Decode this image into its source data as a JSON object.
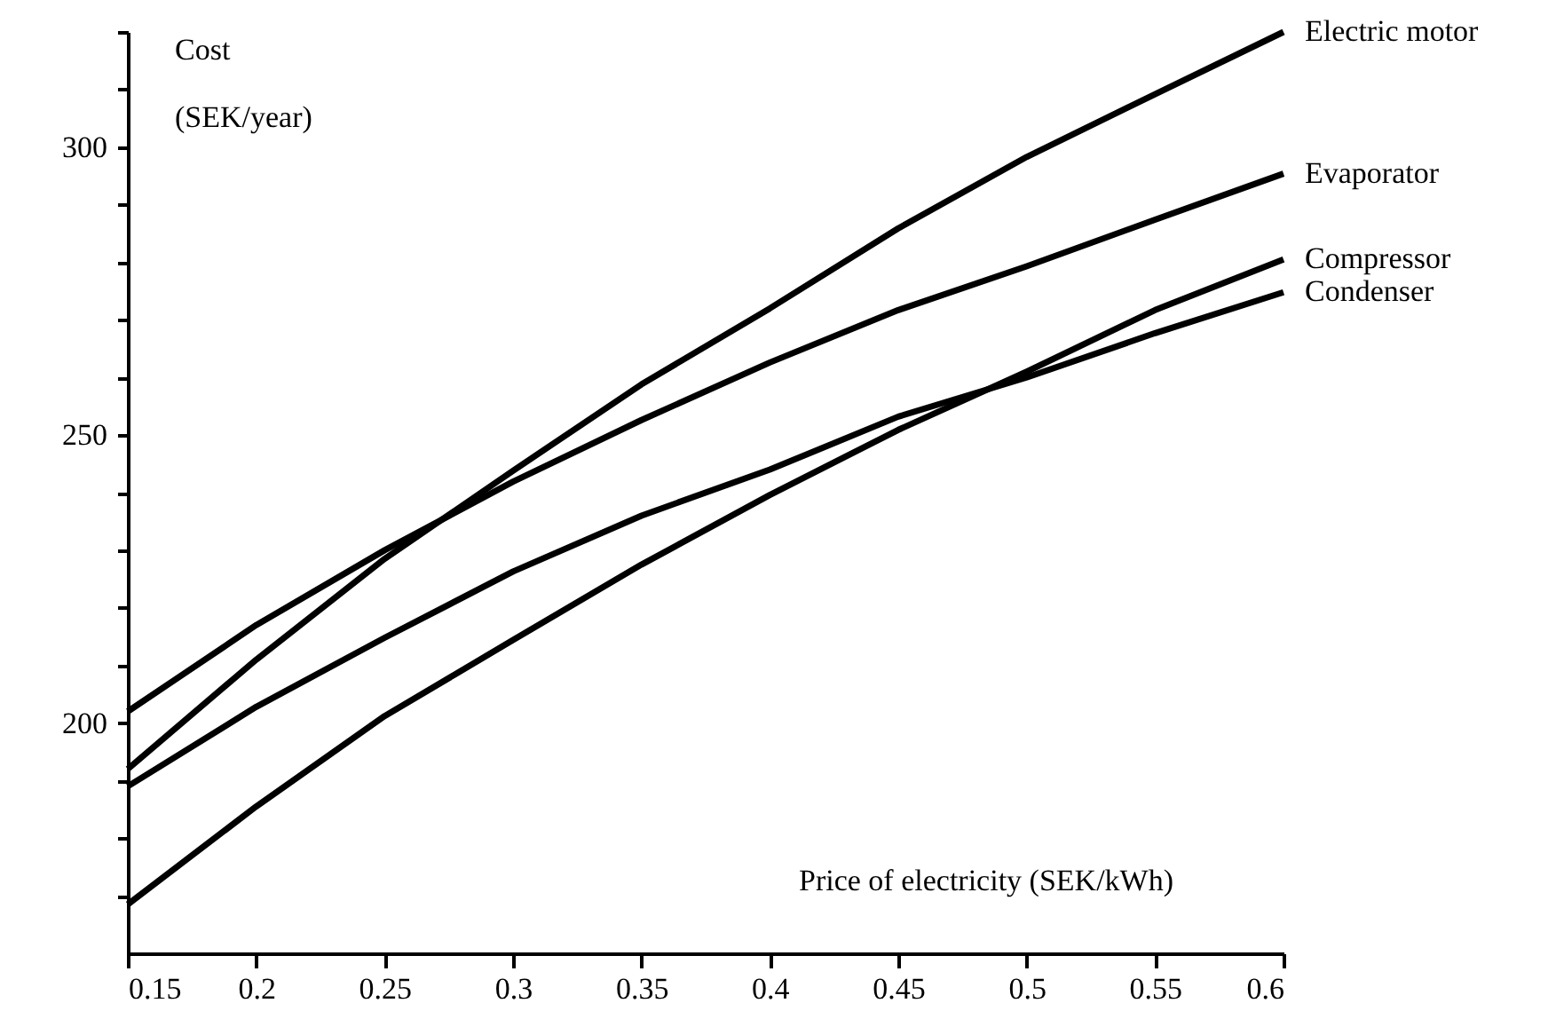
{
  "chart_data": {
    "type": "line",
    "xlabel": "Price of electricity (SEK/kWh)",
    "ylabel": "Cost\n(SEK/year)",
    "x": [
      0.15,
      0.2,
      0.25,
      0.3,
      0.35,
      0.4,
      0.45,
      0.5,
      0.55,
      0.6
    ],
    "series": [
      {
        "name": "Electric motor",
        "color": "#000000",
        "values": [
          192,
          211,
          228.5,
          243.8,
          258.8,
          272,
          285.9,
          298.3,
          309.2,
          320
        ]
      },
      {
        "name": "Evaporator",
        "color": "#000000",
        "values": [
          202,
          217,
          230,
          241.9,
          252.6,
          262.6,
          271.7,
          279.3,
          287.4,
          295.4
        ]
      },
      {
        "name": "Compressor",
        "color": "#000000",
        "values": [
          168.5,
          185.5,
          201.2,
          214.4,
          227.5,
          239.6,
          250.9,
          261,
          271.7,
          280.5
        ]
      },
      {
        "name": "Condenser",
        "color": "#000000",
        "values": [
          189,
          202.8,
          214.8,
          226.3,
          236,
          244,
          253.2,
          260,
          267.7,
          274.8
        ]
      }
    ],
    "xlim": [
      0.15,
      0.6
    ],
    "xticks": [
      0.15,
      0.2,
      0.25,
      0.3,
      0.35,
      0.4,
      0.45,
      0.5,
      0.55,
      0.6
    ],
    "ylim": [
      160,
      320
    ],
    "yticks": [
      {
        "value": 170,
        "label": null
      },
      {
        "value": 180,
        "label": null
      },
      {
        "value": 190,
        "label": null
      },
      200,
      {
        "value": 210,
        "label": null
      },
      {
        "value": 220,
        "label": null
      },
      {
        "value": 230,
        "label": null
      },
      {
        "value": 240,
        "label": null
      },
      250,
      {
        "value": 260,
        "label": null
      },
      {
        "value": 270,
        "label": null
      },
      {
        "value": 280,
        "label": null
      },
      {
        "value": 290,
        "label": null
      },
      300,
      {
        "value": 310,
        "label": null
      },
      {
        "value": 320,
        "label": null
      }
    ],
    "grid": false,
    "marker": "none",
    "line_style": "solid"
  }
}
